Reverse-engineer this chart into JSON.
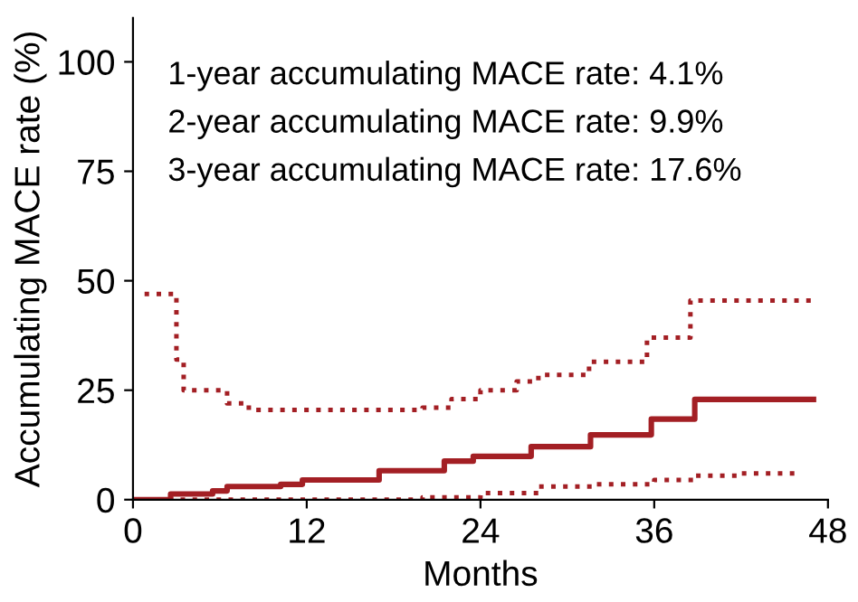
{
  "chart_data": {
    "type": "step",
    "xlabel": "Months",
    "ylabel": "Accumulating MACE rate (%)",
    "annotations": [
      "1-year accumulating MACE rate: 4.1%",
      "2-year accumulating MACE rate: 9.9%",
      "3-year accumulating MACE rate: 17.6%"
    ],
    "series": [
      {
        "color": "#a31f24",
        "line_style": "solid",
        "x": [
          0,
          1,
          2.6,
          5.5,
          6.5,
          10.2,
          11.7,
          17,
          21.5,
          23.5,
          27.5,
          31.6,
          35.8,
          38.8,
          47
        ],
        "values": [
          0,
          0,
          1.3,
          2,
          3,
          3.5,
          4.5,
          6.6,
          8.8,
          9.9,
          12.1,
          14.8,
          18.4,
          22.9,
          22.9
        ]
      },
      {
        "color": "#a31f24",
        "line_style": "dotted",
        "x": [
          0.8,
          2.7,
          3,
          3.5,
          5.5,
          6.5,
          8,
          20,
          22,
          24,
          26.5,
          28,
          31.5,
          35.5,
          38.5,
          47
        ],
        "values": [
          47,
          47,
          32,
          25,
          25,
          22,
          20.5,
          21,
          23,
          25,
          27,
          28.5,
          31.5,
          37,
          45.5,
          45.5
        ]
      },
      {
        "color": "#a31f24",
        "line_style": "dotted",
        "x": [
          0.8,
          17,
          20,
          24,
          28,
          32,
          36,
          38.8,
          42,
          46
        ],
        "values": [
          0,
          0,
          0.5,
          1.5,
          3,
          3.5,
          4.5,
          5.5,
          6,
          6
        ]
      }
    ],
    "xlim": [
      0,
      48
    ],
    "ylim": [
      0,
      110
    ],
    "xticks": [
      0,
      12,
      24,
      36,
      48
    ],
    "yticks": [
      0,
      25,
      50,
      75,
      100
    ],
    "grid": false,
    "legend": false
  }
}
